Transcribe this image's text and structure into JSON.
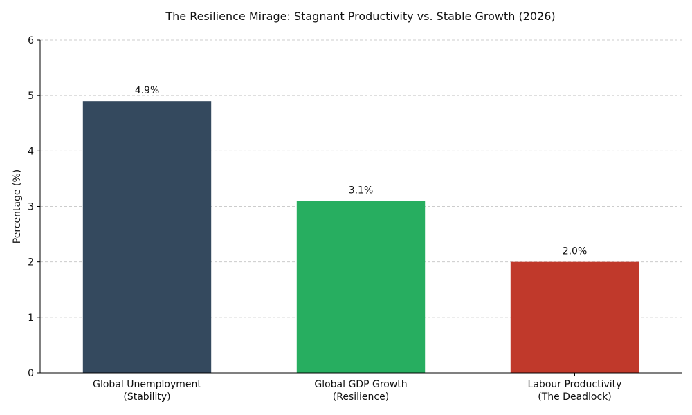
{
  "chart_data": {
    "type": "bar",
    "title": "The Resilience Mirage: Stagnant Productivity vs. Stable Growth (2026)",
    "xlabel": "",
    "ylabel": "Percentage (%)",
    "ylim": [
      0,
      6
    ],
    "yticks": [
      0,
      1,
      2,
      3,
      4,
      5,
      6
    ],
    "grid": true,
    "categories": [
      [
        "Global Unemployment",
        "(Stability)"
      ],
      [
        "Global GDP Growth",
        "(Resilience)"
      ],
      [
        "Labour Productivity",
        "(The Deadlock)"
      ]
    ],
    "values": [
      4.9,
      3.1,
      2.0
    ],
    "data_labels": [
      "4.9%",
      "3.1%",
      "2.0%"
    ],
    "colors": [
      "#34495e",
      "#27ae60",
      "#c0392b"
    ]
  }
}
